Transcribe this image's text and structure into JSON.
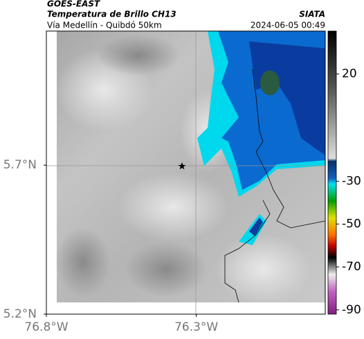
{
  "header": {
    "source": "GOES-EAST",
    "product": "Temperatura de Brillo CH13",
    "org": "SIATA",
    "route": "Vía Medellín - Quibdó 50km",
    "datetime": "2024-06-05 00:49"
  },
  "map": {
    "xlim": [
      -76.8,
      -75.87
    ],
    "ylim": [
      5.2,
      6.15
    ],
    "xticks": [
      {
        "value": -76.8,
        "label": "76.8°W"
      },
      {
        "value": -76.3,
        "label": "76.3°W"
      }
    ],
    "yticks": [
      {
        "value": 5.7,
        "label": "5.7°N"
      },
      {
        "value": 5.2,
        "label": "5.2°N"
      }
    ]
  },
  "colorbar": {
    "lim": [
      40,
      -92
    ],
    "ticks": [
      20,
      -30,
      -50,
      -70,
      -90
    ]
  }
}
